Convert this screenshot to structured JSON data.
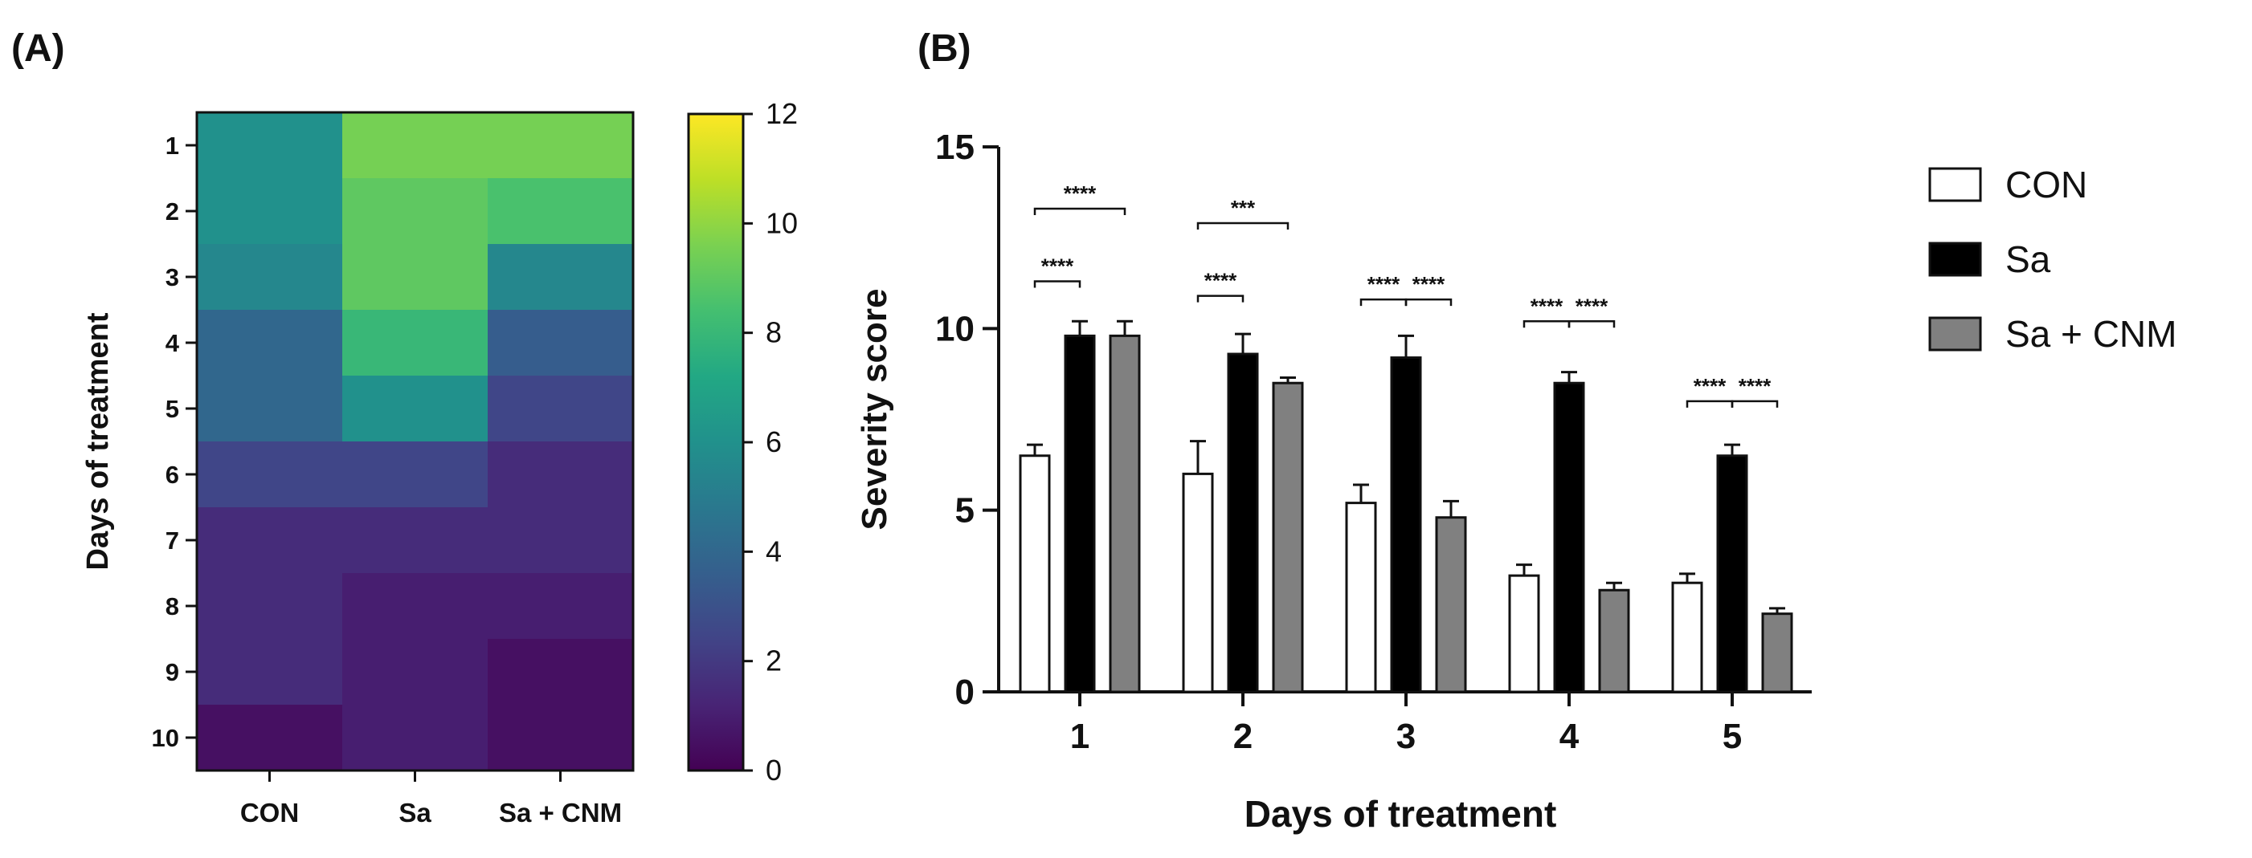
{
  "chart_data": [
    {
      "panel": "(A)",
      "type": "heatmap",
      "columns": [
        "CON",
        "Sa",
        "Sa + CNM"
      ],
      "rows": [
        "1",
        "2",
        "3",
        "4",
        "5",
        "6",
        "7",
        "8",
        "9",
        "10"
      ],
      "values": [
        [
          6.0,
          9.5,
          9.5
        ],
        [
          6.0,
          9.0,
          8.5
        ],
        [
          5.5,
          9.0,
          5.5
        ],
        [
          4.0,
          8.0,
          3.5
        ],
        [
          4.0,
          6.0,
          2.5
        ],
        [
          2.5,
          2.5,
          1.5
        ],
        [
          1.5,
          1.5,
          1.5
        ],
        [
          1.5,
          1.0,
          1.0
        ],
        [
          1.5,
          1.0,
          0.5
        ],
        [
          0.5,
          1.0,
          0.5
        ]
      ],
      "ylabel": "Days of treatment",
      "colorbar": {
        "min": 0,
        "max": 12,
        "ticks": [
          "0",
          "2",
          "4",
          "6",
          "8",
          "10",
          "12"
        ],
        "colormap": "viridis"
      }
    },
    {
      "panel": "(B)",
      "type": "bar",
      "categories": [
        "1",
        "2",
        "3",
        "4",
        "5"
      ],
      "series": [
        {
          "name": "CON",
          "values": [
            6.5,
            6.0,
            5.2,
            3.2,
            3.0
          ],
          "errors": [
            0.3,
            0.9,
            0.5,
            0.3,
            0.25
          ],
          "fill": "#ffffff"
        },
        {
          "name": "Sa",
          "values": [
            9.8,
            9.3,
            9.2,
            8.5,
            6.5
          ],
          "errors": [
            0.4,
            0.55,
            0.6,
            0.3,
            0.3
          ],
          "fill": "#000000"
        },
        {
          "name": "Sa + CNM",
          "values": [
            9.8,
            8.5,
            4.8,
            2.8,
            2.15
          ],
          "errors": [
            0.4,
            0.15,
            0.45,
            0.2,
            0.15
          ],
          "fill": "#808080"
        }
      ],
      "xlabel": "Days of treatment",
      "ylabel": "Severity score",
      "ylim": [
        0,
        15
      ],
      "yticks": [
        "0",
        "5",
        "10",
        "15"
      ],
      "significance": [
        {
          "day": "1",
          "from": "CON",
          "to": "Sa",
          "stars": "****",
          "level": 11.3
        },
        {
          "day": "1",
          "from": "CON",
          "to": "Sa + CNM",
          "stars": "****",
          "level": 13.3
        },
        {
          "day": "2",
          "from": "CON",
          "to": "Sa",
          "stars": "****",
          "level": 10.9
        },
        {
          "day": "2",
          "from": "CON",
          "to": "Sa + CNM",
          "stars": "***",
          "level": 12.9
        },
        {
          "day": "3",
          "from": "CON",
          "to": "Sa",
          "stars": "****",
          "level": 10.8
        },
        {
          "day": "3",
          "from": "Sa",
          "to": "Sa + CNM",
          "stars": "****",
          "level": 10.8
        },
        {
          "day": "4",
          "from": "CON",
          "to": "Sa",
          "stars": "****",
          "level": 10.2
        },
        {
          "day": "4",
          "from": "Sa",
          "to": "Sa + CNM",
          "stars": "****",
          "level": 10.2
        },
        {
          "day": "5",
          "from": "CON",
          "to": "Sa",
          "stars": "****",
          "level": 8.0
        },
        {
          "day": "5",
          "from": "Sa",
          "to": "Sa + CNM",
          "stars": "****",
          "level": 8.0
        }
      ]
    }
  ]
}
